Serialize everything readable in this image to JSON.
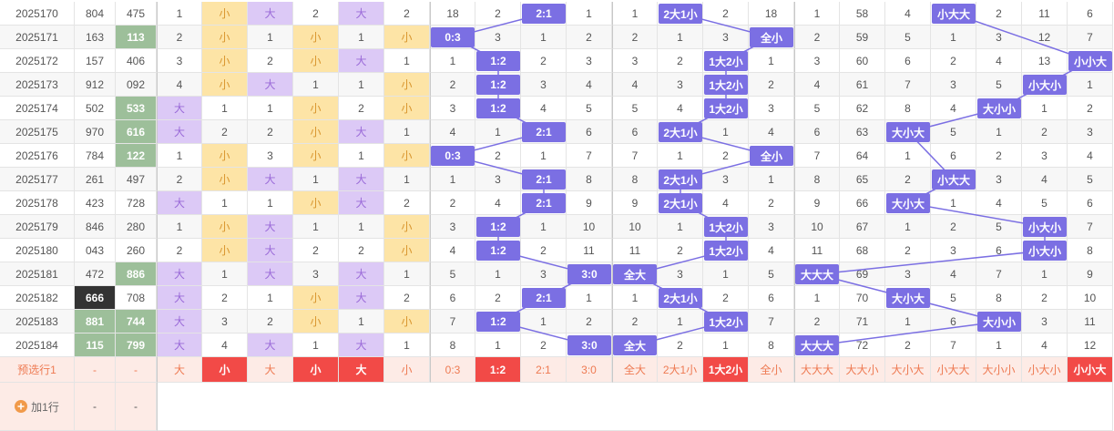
{
  "rows": [
    {
      "issue": "2025170",
      "n1": "804",
      "n2": "475",
      "cells": [
        "1",
        "小",
        "大",
        "2",
        "大",
        "2",
        "18",
        "2",
        "2:1",
        "1",
        "1",
        "2大1小",
        "2",
        "18",
        "1",
        "58",
        "4",
        "小大大",
        "2",
        "11",
        "6"
      ]
    },
    {
      "issue": "2025171",
      "n1": "163",
      "n2": "113",
      "n2_color": "#9dbf9a",
      "cells": [
        "2",
        "小",
        "1",
        "小",
        "1",
        "小",
        "0:3",
        "3",
        "1",
        "2",
        "2",
        "1",
        "3",
        "全小",
        "2",
        "59",
        "5",
        "1",
        "3",
        "12",
        "7"
      ]
    },
    {
      "issue": "2025172",
      "n1": "157",
      "n2": "406",
      "cells": [
        "3",
        "小",
        "2",
        "小",
        "大",
        "1",
        "1",
        "1:2",
        "2",
        "3",
        "3",
        "2",
        "1大2小",
        "1",
        "3",
        "60",
        "6",
        "2",
        "4",
        "13",
        "小小大"
      ]
    },
    {
      "issue": "2025173",
      "n1": "912",
      "n2": "092",
      "cells": [
        "4",
        "小",
        "大",
        "1",
        "1",
        "小",
        "2",
        "1:2",
        "3",
        "4",
        "4",
        "3",
        "1大2小",
        "2",
        "4",
        "61",
        "7",
        "3",
        "5",
        "小大小",
        "1"
      ]
    },
    {
      "issue": "2025174",
      "n1": "502",
      "n2": "533",
      "n2_color": "#9dbf9a",
      "cells": [
        "大",
        "1",
        "1",
        "小",
        "2",
        "小",
        "3",
        "1:2",
        "4",
        "5",
        "5",
        "4",
        "1大2小",
        "3",
        "5",
        "62",
        "8",
        "4",
        "大小小",
        "1",
        "2"
      ]
    },
    {
      "issue": "2025175",
      "n1": "970",
      "n2": "616",
      "n2_color": "#9dbf9a",
      "cells": [
        "大",
        "2",
        "2",
        "小",
        "大",
        "1",
        "4",
        "1",
        "2:1",
        "6",
        "6",
        "2大1小",
        "1",
        "4",
        "6",
        "63",
        "大小大",
        "5",
        "1",
        "2",
        "3"
      ]
    },
    {
      "issue": "2025176",
      "n1": "784",
      "n2": "122",
      "n2_color": "#9dbf9a",
      "cells": [
        "1",
        "小",
        "3",
        "小",
        "1",
        "小",
        "0:3",
        "2",
        "1",
        "7",
        "7",
        "1",
        "2",
        "全小",
        "7",
        "64",
        "1",
        "6",
        "2",
        "3",
        "4"
      ]
    },
    {
      "issue": "2025177",
      "n1": "261",
      "n2": "497",
      "cells": [
        "2",
        "小",
        "大",
        "1",
        "大",
        "1",
        "1",
        "3",
        "2:1",
        "8",
        "8",
        "2大1小",
        "3",
        "1",
        "8",
        "65",
        "2",
        "小大大",
        "3",
        "4",
        "5"
      ]
    },
    {
      "issue": "2025178",
      "n1": "423",
      "n2": "728",
      "cells": [
        "大",
        "1",
        "1",
        "小",
        "大",
        "2",
        "2",
        "4",
        "2:1",
        "9",
        "9",
        "2大1小",
        "4",
        "2",
        "9",
        "66",
        "大小大",
        "1",
        "4",
        "5",
        "6"
      ]
    },
    {
      "issue": "2025179",
      "n1": "846",
      "n2": "280",
      "cells": [
        "1",
        "小",
        "大",
        "1",
        "1",
        "小",
        "3",
        "1:2",
        "1",
        "10",
        "10",
        "1",
        "1大2小",
        "3",
        "10",
        "67",
        "1",
        "2",
        "5",
        "小大小",
        "7"
      ]
    },
    {
      "issue": "2025180",
      "n1": "043",
      "n2": "260",
      "cells": [
        "2",
        "小",
        "大",
        "2",
        "2",
        "小",
        "4",
        "1:2",
        "2",
        "11",
        "11",
        "2",
        "1大2小",
        "4",
        "11",
        "68",
        "2",
        "3",
        "6",
        "小大小",
        "8"
      ]
    },
    {
      "issue": "2025181",
      "n1": "472",
      "n2": "886",
      "n2_color": "#9dbf9a",
      "cells": [
        "大",
        "1",
        "大",
        "3",
        "大",
        "1",
        "5",
        "1",
        "3",
        "3:0",
        "全大",
        "3",
        "1",
        "5",
        "大大大",
        "69",
        "3",
        "4",
        "7",
        "1",
        "9"
      ]
    },
    {
      "issue": "2025182",
      "n1": "666",
      "n1_color": "#333333",
      "n2": "708",
      "cells": [
        "大",
        "2",
        "1",
        "小",
        "大",
        "2",
        "6",
        "2",
        "2:1",
        "1",
        "1",
        "2大1小",
        "2",
        "6",
        "1",
        "70",
        "大小大",
        "5",
        "8",
        "2",
        "10"
      ]
    },
    {
      "issue": "2025183",
      "n1": "881",
      "n1_color": "#9dbf9a",
      "n2": "744",
      "n2_color": "#9dbf9a",
      "cells": [
        "大",
        "3",
        "2",
        "小",
        "1",
        "小",
        "7",
        "1:2",
        "1",
        "2",
        "2",
        "1",
        "1大2小",
        "7",
        "2",
        "71",
        "1",
        "6",
        "大小小",
        "3",
        "11"
      ]
    },
    {
      "issue": "2025184",
      "n1": "115",
      "n1_color": "#9dbf9a",
      "n2": "799",
      "n2_color": "#9dbf9a",
      "cells": [
        "大",
        "4",
        "大",
        "1",
        "大",
        "1",
        "8",
        "1",
        "2",
        "3:0",
        "全大",
        "2",
        "1",
        "8",
        "大大大",
        "72",
        "2",
        "7",
        "1",
        "4",
        "12"
      ]
    }
  ],
  "preview": {
    "label": "预选行1",
    "n1": "-",
    "n2": "-",
    "cells": [
      "大",
      "小",
      "大",
      "小",
      "大",
      "小",
      "0:3",
      "1:2",
      "2:1",
      "3:0",
      "全大",
      "2大1小",
      "1大2小",
      "全小",
      "大大大",
      "大大小",
      "大小大",
      "小大大",
      "大小小",
      "小大小",
      "小小大"
    ],
    "selected": [
      1,
      3,
      4,
      7,
      12,
      20
    ],
    "selected_color": "#f24a47"
  },
  "add": {
    "label": "加1行",
    "n1": "-",
    "n2": "-"
  },
  "hit_color": "#7b6fe3"
}
